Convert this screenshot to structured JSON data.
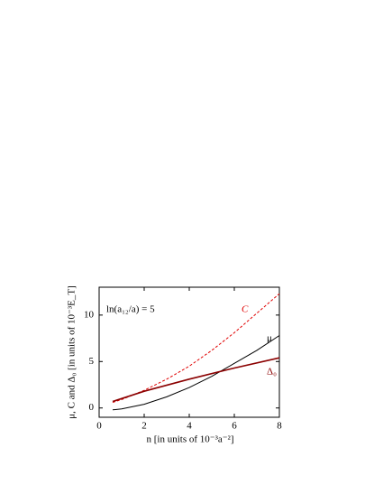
{
  "chart_data": {
    "type": "line",
    "annotation": "ln(a₁₂/a) = 5",
    "xlabel": "n [in units of 10⁻³a⁻²]",
    "ylabel": "μ, C and Δ₀ [in units of 10⁻³E_T]",
    "xlim": [
      0,
      8
    ],
    "xticks": [
      0,
      2,
      4,
      6,
      8
    ],
    "ylim": [
      -1,
      13
    ],
    "yticks": [
      0,
      5,
      10
    ],
    "series": [
      {
        "name": "C",
        "color": "#e00000",
        "dashed": true,
        "x": [
          0.6,
          1,
          2,
          3,
          4,
          5,
          6,
          7,
          8
        ],
        "values": [
          0.6,
          0.9,
          1.9,
          3.1,
          4.5,
          6.2,
          8.1,
          10.2,
          12.3
        ]
      },
      {
        "name": "μ",
        "color": "#000000",
        "dashed": false,
        "x": [
          0.6,
          1,
          2,
          3,
          4,
          5,
          6,
          7,
          8
        ],
        "values": [
          -0.2,
          -0.1,
          0.4,
          1.2,
          2.2,
          3.4,
          4.8,
          6.2,
          7.8
        ]
      },
      {
        "name": "Δ₀",
        "color": "#8b0000",
        "dashed": false,
        "x": [
          0.6,
          2,
          4,
          6,
          8
        ],
        "values": [
          0.7,
          1.8,
          3.1,
          4.3,
          5.4
        ]
      }
    ]
  }
}
